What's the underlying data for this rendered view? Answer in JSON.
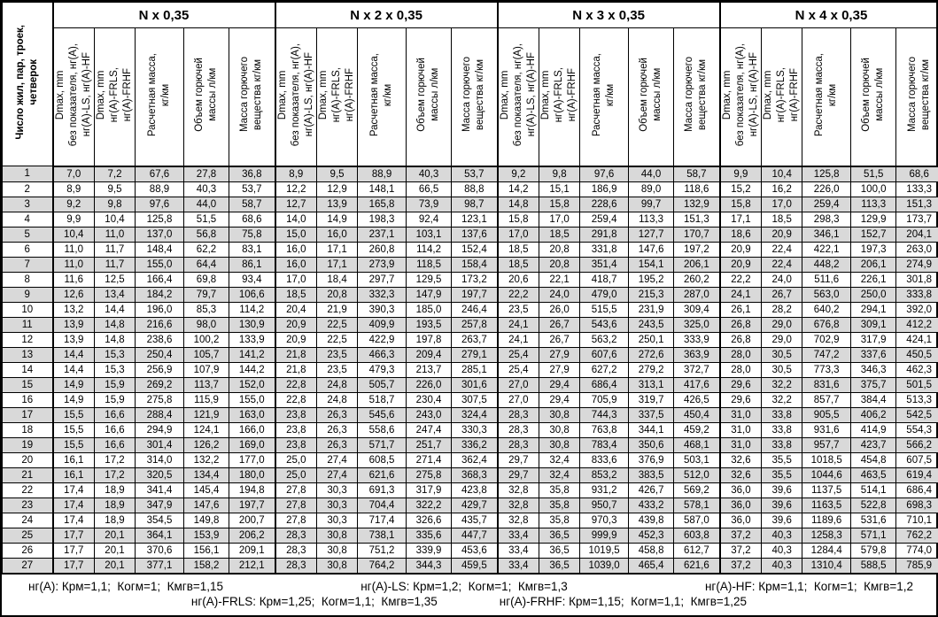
{
  "table": {
    "row_header": "Число жил, пар, троек,\nчетверок",
    "groups": [
      "N х 0,35",
      "N х 2 х 0,35",
      "N х 3 х 0,35",
      "N х 4 х 0,35"
    ],
    "col_headers": [
      "Dmax, mm\nбез показателя, нг(А),\nнг(А)-LS, нг(А)-HF",
      "Dmax, mm\nнг(А)-FRLS,\nнг(А)-FRHF",
      "Расчетная масса,\nкг/км",
      "Объем горючей\nмассы л/км",
      "Масса горючего\nвещества кг/км"
    ],
    "rows": [
      [
        "1",
        "7,0",
        "7,2",
        "67,6",
        "27,8",
        "36,8",
        "8,9",
        "9,5",
        "88,9",
        "40,3",
        "53,7",
        "9,2",
        "9,8",
        "97,6",
        "44,0",
        "58,7",
        "9,9",
        "10,4",
        "125,8",
        "51,5",
        "68,6"
      ],
      [
        "2",
        "8,9",
        "9,5",
        "88,9",
        "40,3",
        "53,7",
        "12,2",
        "12,9",
        "148,1",
        "66,5",
        "88,8",
        "14,2",
        "15,1",
        "186,9",
        "89,0",
        "118,6",
        "15,2",
        "16,2",
        "226,0",
        "100,0",
        "133,3"
      ],
      [
        "3",
        "9,2",
        "9,8",
        "97,6",
        "44,0",
        "58,7",
        "12,7",
        "13,9",
        "165,8",
        "73,9",
        "98,7",
        "14,8",
        "15,8",
        "228,6",
        "99,7",
        "132,9",
        "15,8",
        "17,0",
        "259,4",
        "113,3",
        "151,3"
      ],
      [
        "4",
        "9,9",
        "10,4",
        "125,8",
        "51,5",
        "68,6",
        "14,0",
        "14,9",
        "198,3",
        "92,4",
        "123,1",
        "15,8",
        "17,0",
        "259,4",
        "113,3",
        "151,3",
        "17,1",
        "18,5",
        "298,3",
        "129,9",
        "173,7"
      ],
      [
        "5",
        "10,4",
        "11,0",
        "137,0",
        "56,8",
        "75,8",
        "15,0",
        "16,0",
        "237,1",
        "103,1",
        "137,6",
        "17,0",
        "18,5",
        "291,8",
        "127,7",
        "170,7",
        "18,6",
        "20,9",
        "346,1",
        "152,7",
        "204,1"
      ],
      [
        "6",
        "11,0",
        "11,7",
        "148,4",
        "62,2",
        "83,1",
        "16,0",
        "17,1",
        "260,8",
        "114,2",
        "152,4",
        "18,5",
        "20,8",
        "331,8",
        "147,6",
        "197,2",
        "20,9",
        "22,4",
        "422,1",
        "197,3",
        "263,0"
      ],
      [
        "7",
        "11,0",
        "11,7",
        "155,0",
        "64,4",
        "86,1",
        "16,0",
        "17,1",
        "273,9",
        "118,5",
        "158,4",
        "18,5",
        "20,8",
        "351,4",
        "154,1",
        "206,1",
        "20,9",
        "22,4",
        "448,2",
        "206,1",
        "274,9"
      ],
      [
        "8",
        "11,6",
        "12,5",
        "166,4",
        "69,8",
        "93,4",
        "17,0",
        "18,4",
        "297,7",
        "129,5",
        "173,2",
        "20,6",
        "22,1",
        "418,7",
        "195,2",
        "260,2",
        "22,2",
        "24,0",
        "511,6",
        "226,1",
        "301,8"
      ],
      [
        "9",
        "12,6",
        "13,4",
        "184,2",
        "79,7",
        "106,6",
        "18,5",
        "20,8",
        "332,3",
        "147,9",
        "197,7",
        "22,2",
        "24,0",
        "479,0",
        "215,3",
        "287,0",
        "24,1",
        "26,7",
        "563,0",
        "250,0",
        "333,8"
      ],
      [
        "10",
        "13,2",
        "14,4",
        "196,0",
        "85,3",
        "114,2",
        "20,4",
        "21,9",
        "390,3",
        "185,0",
        "246,4",
        "23,5",
        "26,0",
        "515,5",
        "231,9",
        "309,4",
        "26,1",
        "28,2",
        "640,2",
        "294,1",
        "392,0"
      ],
      [
        "11",
        "13,9",
        "14,8",
        "216,6",
        "98,0",
        "130,9",
        "20,9",
        "22,5",
        "409,9",
        "193,5",
        "257,8",
        "24,1",
        "26,7",
        "543,6",
        "243,5",
        "325,0",
        "26,8",
        "29,0",
        "676,8",
        "309,1",
        "412,2"
      ],
      [
        "12",
        "13,9",
        "14,8",
        "238,6",
        "100,2",
        "133,9",
        "20,9",
        "22,5",
        "422,9",
        "197,8",
        "263,7",
        "24,1",
        "26,7",
        "563,2",
        "250,1",
        "333,9",
        "26,8",
        "29,0",
        "702,9",
        "317,9",
        "424,1"
      ],
      [
        "13",
        "14,4",
        "15,3",
        "250,4",
        "105,7",
        "141,2",
        "21,8",
        "23,5",
        "466,3",
        "209,4",
        "279,1",
        "25,4",
        "27,9",
        "607,6",
        "272,6",
        "363,9",
        "28,0",
        "30,5",
        "747,2",
        "337,6",
        "450,5"
      ],
      [
        "14",
        "14,4",
        "15,3",
        "256,9",
        "107,9",
        "144,2",
        "21,8",
        "23,5",
        "479,3",
        "213,7",
        "285,1",
        "25,4",
        "27,9",
        "627,2",
        "279,2",
        "372,7",
        "28,0",
        "30,5",
        "773,3",
        "346,3",
        "462,3"
      ],
      [
        "15",
        "14,9",
        "15,9",
        "269,2",
        "113,7",
        "152,0",
        "22,8",
        "24,8",
        "505,7",
        "226,0",
        "301,6",
        "27,0",
        "29,4",
        "686,4",
        "313,1",
        "417,6",
        "29,6",
        "32,2",
        "831,6",
        "375,7",
        "501,5"
      ],
      [
        "16",
        "14,9",
        "15,9",
        "275,8",
        "115,9",
        "155,0",
        "22,8",
        "24,8",
        "518,7",
        "230,4",
        "307,5",
        "27,0",
        "29,4",
        "705,9",
        "319,7",
        "426,5",
        "29,6",
        "32,2",
        "857,7",
        "384,4",
        "513,3"
      ],
      [
        "17",
        "15,5",
        "16,6",
        "288,4",
        "121,9",
        "163,0",
        "23,8",
        "26,3",
        "545,6",
        "243,0",
        "324,4",
        "28,3",
        "30,8",
        "744,3",
        "337,5",
        "450,4",
        "31,0",
        "33,8",
        "905,5",
        "406,2",
        "542,5"
      ],
      [
        "18",
        "15,5",
        "16,6",
        "294,9",
        "124,1",
        "166,0",
        "23,8",
        "26,3",
        "558,6",
        "247,4",
        "330,3",
        "28,3",
        "30,8",
        "763,8",
        "344,1",
        "459,2",
        "31,0",
        "33,8",
        "931,6",
        "414,9",
        "554,3"
      ],
      [
        "19",
        "15,5",
        "16,6",
        "301,4",
        "126,2",
        "169,0",
        "23,8",
        "26,3",
        "571,7",
        "251,7",
        "336,2",
        "28,3",
        "30,8",
        "783,4",
        "350,6",
        "468,1",
        "31,0",
        "33,8",
        "957,7",
        "423,7",
        "566,2"
      ],
      [
        "20",
        "16,1",
        "17,2",
        "314,0",
        "132,2",
        "177,0",
        "25,0",
        "27,4",
        "608,5",
        "271,4",
        "362,4",
        "29,7",
        "32,4",
        "833,6",
        "376,9",
        "503,1",
        "32,6",
        "35,5",
        "1018,5",
        "454,8",
        "607,5"
      ],
      [
        "21",
        "16,1",
        "17,2",
        "320,5",
        "134,4",
        "180,0",
        "25,0",
        "27,4",
        "621,6",
        "275,8",
        "368,3",
        "29,7",
        "32,4",
        "853,2",
        "383,5",
        "512,0",
        "32,6",
        "35,5",
        "1044,6",
        "463,5",
        "619,4"
      ],
      [
        "22",
        "17,4",
        "18,9",
        "341,4",
        "145,4",
        "194,8",
        "27,8",
        "30,3",
        "691,3",
        "317,9",
        "423,8",
        "32,8",
        "35,8",
        "931,2",
        "426,7",
        "569,2",
        "36,0",
        "39,6",
        "1137,5",
        "514,1",
        "686,4"
      ],
      [
        "23",
        "17,4",
        "18,9",
        "347,9",
        "147,6",
        "197,7",
        "27,8",
        "30,3",
        "704,4",
        "322,2",
        "429,7",
        "32,8",
        "35,8",
        "950,7",
        "433,2",
        "578,1",
        "36,0",
        "39,6",
        "1163,5",
        "522,8",
        "698,3"
      ],
      [
        "24",
        "17,4",
        "18,9",
        "354,5",
        "149,8",
        "200,7",
        "27,8",
        "30,3",
        "717,4",
        "326,6",
        "435,7",
        "32,8",
        "35,8",
        "970,3",
        "439,8",
        "587,0",
        "36,0",
        "39,6",
        "1189,6",
        "531,6",
        "710,1"
      ],
      [
        "25",
        "17,7",
        "20,1",
        "364,1",
        "153,9",
        "206,2",
        "28,3",
        "30,8",
        "738,1",
        "335,6",
        "447,7",
        "33,4",
        "36,5",
        "999,9",
        "452,3",
        "603,8",
        "37,2",
        "40,3",
        "1258,3",
        "571,1",
        "762,2"
      ],
      [
        "26",
        "17,7",
        "20,1",
        "370,6",
        "156,1",
        "209,1",
        "28,3",
        "30,8",
        "751,2",
        "339,9",
        "453,6",
        "33,4",
        "36,5",
        "1019,5",
        "458,8",
        "612,7",
        "37,2",
        "40,3",
        "1284,4",
        "579,8",
        "774,0"
      ],
      [
        "27",
        "17,7",
        "20,1",
        "377,1",
        "158,2",
        "212,1",
        "28,3",
        "30,8",
        "764,2",
        "344,3",
        "459,5",
        "33,4",
        "36,5",
        "1039,0",
        "465,4",
        "621,6",
        "37,2",
        "40,3",
        "1310,4",
        "588,5",
        "785,9"
      ]
    ],
    "footnotes": {
      "line1": [
        "нг(А): Крм=1,1;  Когм=1;  Кмгв=1,15",
        "нг(А)-LS: Крм=1,2;  Когм=1;  Кмгв=1,3",
        "нг(А)-HF: Крм=1,1;  Когм=1;  Кмгв=1,2"
      ],
      "line2": [
        "нг(А)-FRLS: Крм=1,25;  Когм=1,1;  Кмгв=1,35",
        "нг(А)-FRHF: Крм=1,15;  Когм=1,1;  Кмгв=1,25"
      ]
    },
    "colors": {
      "row_shade": "#d9d9d9",
      "border": "#000000",
      "background": "#ffffff"
    }
  }
}
